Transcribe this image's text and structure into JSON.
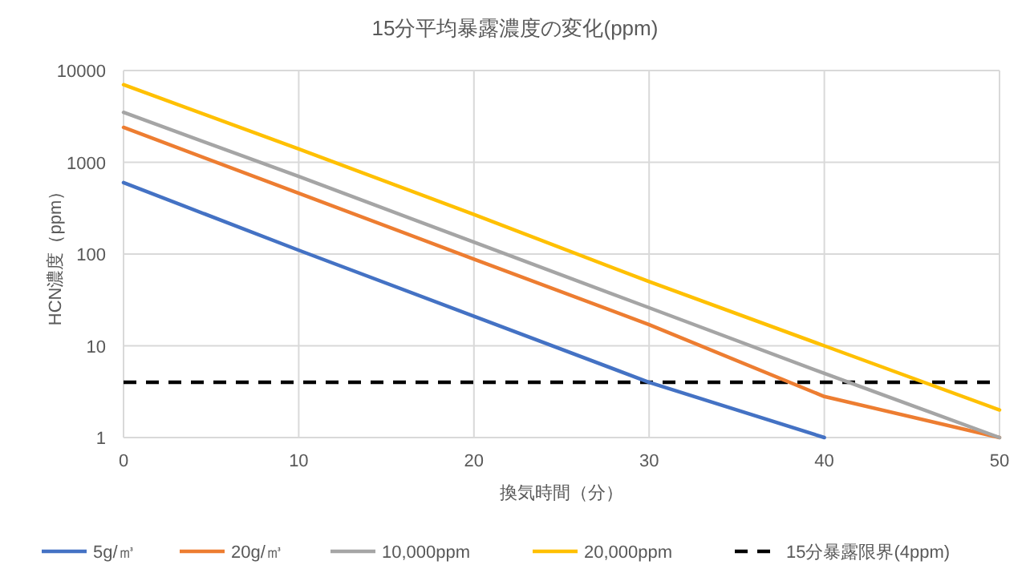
{
  "chart_data": {
    "type": "line",
    "title": "15分平均暴露濃度の変化(ppm)",
    "xlabel": "換気時間（分）",
    "ylabel": "HCN濃度（ppm）",
    "x": [
      0,
      10,
      20,
      30,
      40,
      50
    ],
    "series": [
      {
        "name": "5g/㎥",
        "color": "#4472c4",
        "values": [
          600,
          110,
          21,
          4,
          1,
          null
        ]
      },
      {
        "name": "20g/㎥",
        "color": "#ed7d31",
        "values": [
          2400,
          460,
          88,
          17,
          2.8,
          1
        ]
      },
      {
        "name": "10,000ppm",
        "color": "#a5a5a5",
        "values": [
          3500,
          700,
          135,
          26,
          5,
          1
        ]
      },
      {
        "name": "20,000ppm",
        "color": "#ffc000",
        "values": [
          7000,
          1400,
          270,
          50,
          10,
          2
        ]
      }
    ],
    "ref_lines": [
      {
        "axis": "y",
        "value": 4,
        "label": "15分暴露限界(4ppm)",
        "color": "#000000",
        "line_style": "dashed"
      }
    ],
    "xlim": [
      0,
      50
    ],
    "xticks": [
      0,
      10,
      20,
      30,
      40,
      50
    ],
    "ylim": [
      1,
      10000
    ],
    "yticks": [
      1,
      10,
      100,
      1000,
      10000
    ],
    "log": "y",
    "grid": true,
    "legend": "bottom"
  }
}
